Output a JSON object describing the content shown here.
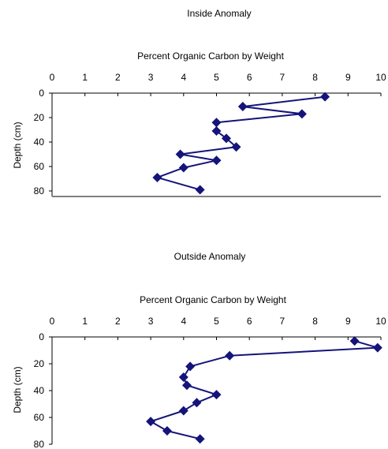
{
  "colors": {
    "series": "#14147a",
    "axis": "#000000",
    "baseline": "#808080",
    "background": "#ffffff"
  },
  "chart_data": [
    {
      "type": "line",
      "title": "Inside Anomaly",
      "xlabel": "Percent Organic Carbon by Weight",
      "ylabel": "Depth (cm)",
      "xlim": [
        0,
        10
      ],
      "ylim": [
        0,
        80
      ],
      "y_inverted": true,
      "x_axis_position": "top",
      "x_ticks": [
        "0",
        "1",
        "2",
        "3",
        "4",
        "5",
        "6",
        "7",
        "8",
        "9",
        "10"
      ],
      "y_ticks": [
        "0",
        "20",
        "40",
        "60",
        "80"
      ],
      "grid": false,
      "legend": "none",
      "marker": "diamond",
      "series": [
        {
          "x": [
            8.3,
            5.8,
            7.6,
            5.0,
            5.0,
            5.3,
            5.6,
            3.9,
            5.0,
            4.0,
            3.2,
            4.5
          ],
          "y": [
            3,
            11,
            17,
            24,
            31,
            37,
            44,
            50,
            55,
            61,
            69,
            79
          ]
        }
      ]
    },
    {
      "type": "line",
      "title": "Outside Anomaly",
      "xlabel": "Percent Organic Carbon by Weight",
      "ylabel": "Depth (cm)",
      "xlim": [
        0,
        10
      ],
      "ylim": [
        0,
        80
      ],
      "y_inverted": true,
      "x_axis_position": "top",
      "x_ticks": [
        "0",
        "1",
        "2",
        "3",
        "4",
        "5",
        "6",
        "7",
        "8",
        "9",
        "10"
      ],
      "y_ticks": [
        "0",
        "20",
        "40",
        "60",
        "80"
      ],
      "grid": false,
      "legend": "none",
      "marker": "diamond",
      "series": [
        {
          "x": [
            9.2,
            9.9,
            5.4,
            4.2,
            4.0,
            4.1,
            5.0,
            4.4,
            4.0,
            3.0,
            3.5,
            4.5
          ],
          "y": [
            3,
            8,
            14,
            22,
            30,
            36,
            43,
            49,
            55,
            63,
            70,
            76
          ]
        }
      ]
    }
  ]
}
